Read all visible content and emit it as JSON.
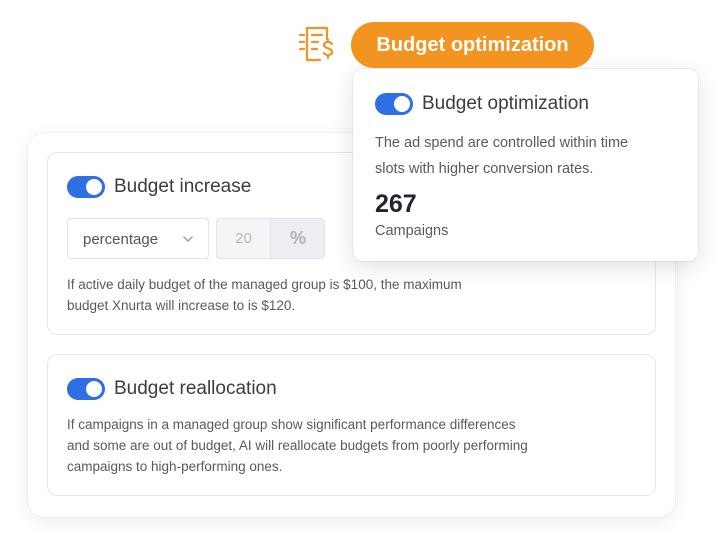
{
  "header": {
    "icon": "budget-document-dollar-icon",
    "badge_label": "Budget optimization"
  },
  "popup": {
    "title": "Budget optimization",
    "toggle_on": true,
    "description_line1": "The ad spend are controlled within time",
    "description_line2": "slots with higher conversion rates.",
    "stat_value": "267",
    "stat_label": "Campaigns"
  },
  "budget_increase": {
    "title": "Budget increase",
    "toggle_on": true,
    "mode_value": "percentage",
    "amount_value": "20",
    "unit_symbol": "%",
    "description_line1": "If active daily budget of the managed group is $100, the maximum",
    "description_line2": "budget Xnurta will increase to is $120."
  },
  "budget_reallocation": {
    "title": "Budget reallocation",
    "toggle_on": true,
    "description_line1": "If campaigns in a managed group show significant performance differences",
    "description_line2": "and some are out of budget, AI will reallocate budgets from poorly performing",
    "description_line3": "campaigns to high-performing ones."
  },
  "colors": {
    "accent_orange": "#f2941f",
    "toggle_blue": "#2f6fe4",
    "text_dark": "#1f2430"
  }
}
